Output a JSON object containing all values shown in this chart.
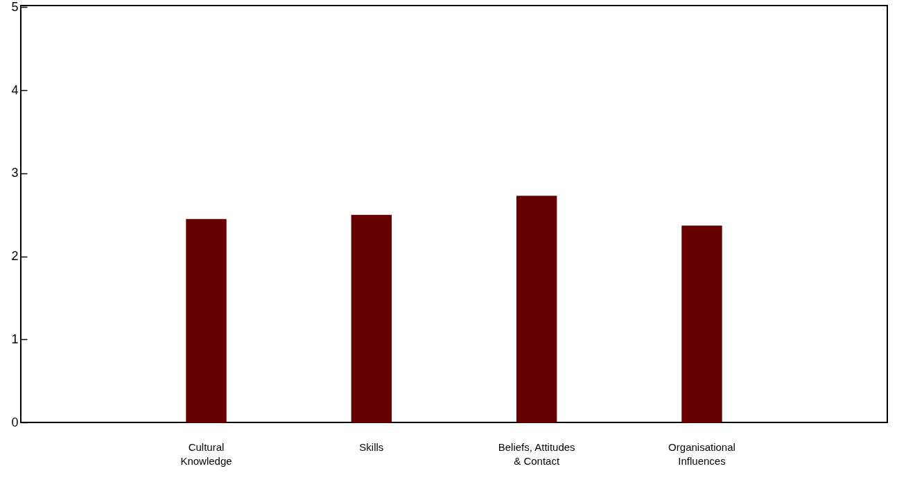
{
  "chart_data": {
    "type": "bar",
    "categories": [
      "Cultural Knowledge",
      "Skills",
      "Beliefs, Attitudes & Contact",
      "Organisational Influences"
    ],
    "values": [
      2.45,
      2.5,
      2.73,
      2.37
    ],
    "color": "#660000",
    "ylim": [
      0,
      5.02
    ],
    "yticks": [
      0,
      1,
      2,
      3,
      4,
      5
    ],
    "grid": false
  }
}
